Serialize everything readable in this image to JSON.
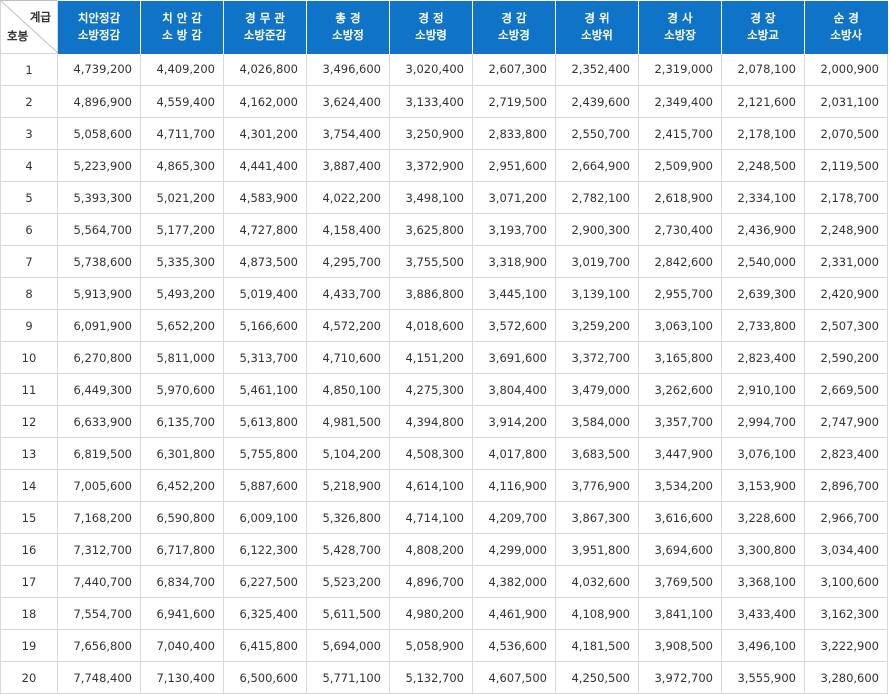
{
  "corner": {
    "top_label": "계급",
    "bottom_label": "호봉"
  },
  "columns": [
    {
      "line1": "치안정감",
      "line2": "소방정감"
    },
    {
      "line1": "치 안 감",
      "line2": "소 방 감"
    },
    {
      "line1": "경 무 관",
      "line2": "소방준감"
    },
    {
      "line1": "총 경",
      "line2": "소방정"
    },
    {
      "line1": "경 정",
      "line2": "소방령"
    },
    {
      "line1": "경 감",
      "line2": "소방경"
    },
    {
      "line1": "경 위",
      "line2": "소방위"
    },
    {
      "line1": "경 사",
      "line2": "소방장"
    },
    {
      "line1": "경 장",
      "line2": "소방교"
    },
    {
      "line1": "순 경",
      "line2": "소방사"
    }
  ],
  "rows": [
    {
      "step": "1",
      "values": [
        "4,739,200",
        "4,409,200",
        "4,026,800",
        "3,496,600",
        "3,020,400",
        "2,607,300",
        "2,352,400",
        "2,319,000",
        "2,078,100",
        "2,000,900"
      ]
    },
    {
      "step": "2",
      "values": [
        "4,896,900",
        "4,559,400",
        "4,162,000",
        "3,624,400",
        "3,133,400",
        "2,719,500",
        "2,439,600",
        "2,349,400",
        "2,121,600",
        "2,031,100"
      ]
    },
    {
      "step": "3",
      "values": [
        "5,058,600",
        "4,711,700",
        "4,301,200",
        "3,754,400",
        "3,250,900",
        "2,833,800",
        "2,550,700",
        "2,415,700",
        "2,178,100",
        "2,070,500"
      ]
    },
    {
      "step": "4",
      "values": [
        "5,223,900",
        "4,865,300",
        "4,441,400",
        "3,887,400",
        "3,372,900",
        "2,951,600",
        "2,664,900",
        "2,509,900",
        "2,248,500",
        "2,119,500"
      ]
    },
    {
      "step": "5",
      "values": [
        "5,393,300",
        "5,021,200",
        "4,583,900",
        "4,022,200",
        "3,498,100",
        "3,071,200",
        "2,782,100",
        "2,618,900",
        "2,334,100",
        "2,178,700"
      ]
    },
    {
      "step": "6",
      "values": [
        "5,564,700",
        "5,177,200",
        "4,727,800",
        "4,158,400",
        "3,625,800",
        "3,193,700",
        "2,900,300",
        "2,730,400",
        "2,436,900",
        "2,248,900"
      ]
    },
    {
      "step": "7",
      "values": [
        "5,738,600",
        "5,335,300",
        "4,873,500",
        "4,295,700",
        "3,755,500",
        "3,318,900",
        "3,019,700",
        "2,842,600",
        "2,540,000",
        "2,331,000"
      ]
    },
    {
      "step": "8",
      "values": [
        "5,913,900",
        "5,493,200",
        "5,019,400",
        "4,433,700",
        "3,886,800",
        "3,445,100",
        "3,139,100",
        "2,955,700",
        "2,639,300",
        "2,420,900"
      ]
    },
    {
      "step": "9",
      "values": [
        "6,091,900",
        "5,652,200",
        "5,166,600",
        "4,572,200",
        "4,018,600",
        "3,572,600",
        "3,259,200",
        "3,063,100",
        "2,733,800",
        "2,507,300"
      ]
    },
    {
      "step": "10",
      "values": [
        "6,270,800",
        "5,811,000",
        "5,313,700",
        "4,710,600",
        "4,151,200",
        "3,691,600",
        "3,372,700",
        "3,165,800",
        "2,823,400",
        "2,590,200"
      ]
    },
    {
      "step": "11",
      "values": [
        "6,449,300",
        "5,970,600",
        "5,461,100",
        "4,850,100",
        "4,275,300",
        "3,804,400",
        "3,479,000",
        "3,262,600",
        "2,910,100",
        "2,669,500"
      ]
    },
    {
      "step": "12",
      "values": [
        "6,633,900",
        "6,135,700",
        "5,613,800",
        "4,981,500",
        "4,394,800",
        "3,914,200",
        "3,584,000",
        "3,357,700",
        "2,994,700",
        "2,747,900"
      ]
    },
    {
      "step": "13",
      "values": [
        "6,819,500",
        "6,301,800",
        "5,755,800",
        "5,104,200",
        "4,508,300",
        "4,017,800",
        "3,683,500",
        "3,447,900",
        "3,076,100",
        "2,823,400"
      ]
    },
    {
      "step": "14",
      "values": [
        "7,005,600",
        "6,452,200",
        "5,887,600",
        "5,218,900",
        "4,614,100",
        "4,116,900",
        "3,776,900",
        "3,534,200",
        "3,153,900",
        "2,896,700"
      ]
    },
    {
      "step": "15",
      "values": [
        "7,168,200",
        "6,590,800",
        "6,009,100",
        "5,326,800",
        "4,714,100",
        "4,209,700",
        "3,867,300",
        "3,616,600",
        "3,228,600",
        "2,966,700"
      ]
    },
    {
      "step": "16",
      "values": [
        "7,312,700",
        "6,717,800",
        "6,122,300",
        "5,428,700",
        "4,808,200",
        "4,299,000",
        "3,951,800",
        "3,694,600",
        "3,300,800",
        "3,034,400"
      ]
    },
    {
      "step": "17",
      "values": [
        "7,440,700",
        "6,834,700",
        "6,227,500",
        "5,523,200",
        "4,896,700",
        "4,382,000",
        "4,032,600",
        "3,769,500",
        "3,368,100",
        "3,100,600"
      ]
    },
    {
      "step": "18",
      "values": [
        "7,554,700",
        "6,941,600",
        "6,325,400",
        "5,611,500",
        "4,980,200",
        "4,461,900",
        "4,108,900",
        "3,841,100",
        "3,433,400",
        "3,162,300"
      ]
    },
    {
      "step": "19",
      "values": [
        "7,656,800",
        "7,040,400",
        "6,415,800",
        "5,694,000",
        "5,058,900",
        "4,536,600",
        "4,181,500",
        "3,908,500",
        "3,496,100",
        "3,222,900"
      ]
    },
    {
      "step": "20",
      "values": [
        "7,748,400",
        "7,130,400",
        "6,500,600",
        "5,771,100",
        "5,132,700",
        "4,607,500",
        "4,250,500",
        "3,972,700",
        "3,555,900",
        "3,280,600"
      ]
    }
  ],
  "colors": {
    "header_bg": "#0f73c8",
    "header_text": "#ffffff",
    "border": "#d9d9d9",
    "text": "#333333"
  }
}
